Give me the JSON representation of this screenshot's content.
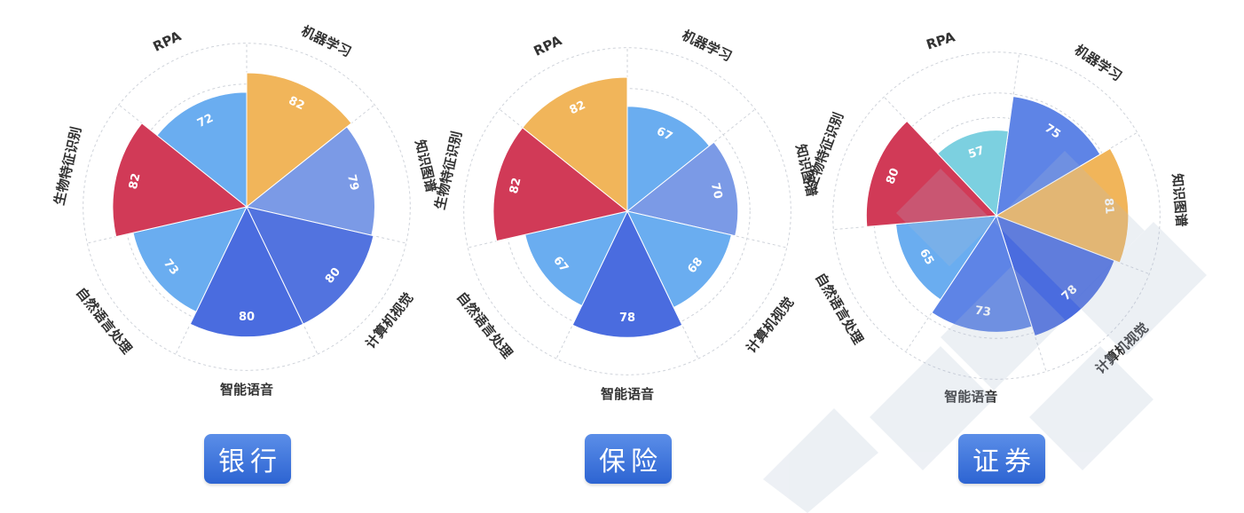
{
  "chart_data": [
    {
      "type": "rose",
      "title": "银行",
      "categories": [
        "机器学习",
        "知识图谱",
        "计算机视觉",
        "智能语音",
        "自然语言处理",
        "生物特征识别",
        "RPA"
      ],
      "values": [
        82,
        79,
        80,
        80,
        73,
        82,
        72
      ],
      "colors": [
        "#f1b55a",
        "#7b9ae6",
        "#5273df",
        "#4a6cdf",
        "#6aadf0",
        "#d13a57",
        "#6aadf0"
      ]
    },
    {
      "type": "rose",
      "title": "保险",
      "categories": [
        "机器学习",
        "知识图谱",
        "计算机视觉",
        "智能语音",
        "自然语言处理",
        "生物特征识别",
        "RPA"
      ],
      "values": [
        67,
        70,
        68,
        78,
        67,
        82,
        82
      ],
      "colors": [
        "#6aadf0",
        "#7b9ae6",
        "#6aadf0",
        "#4a6cdf",
        "#6aadf0",
        "#d13a57",
        "#f1b55a"
      ]
    },
    {
      "type": "rose",
      "title": "证券",
      "categories": [
        "机器学习",
        "知识图谱",
        "计算机视觉",
        "智能语音",
        "自然语言处理",
        "生物特征识别",
        "RPA"
      ],
      "values": [
        75,
        81,
        78,
        73,
        65,
        80,
        57
      ],
      "colors": [
        "#5e84e6",
        "#f1b55a",
        "#4a6cdf",
        "#5e84e6",
        "#6aadf0",
        "#d13a57",
        "#7cd0e0"
      ]
    }
  ]
}
